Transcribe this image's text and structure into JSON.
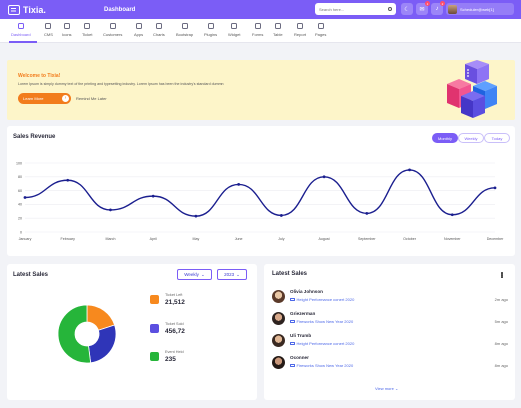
{
  "header": {
    "brand": "Tixia.",
    "page_title": "Dashboard",
    "search_placeholder": "Search here...",
    "notif_count_1": "1",
    "notif_count_2": "2",
    "user_email": "Scheduler@web[1]"
  },
  "nav": {
    "items": [
      {
        "label": "Dashboard"
      },
      {
        "label": "CMS"
      },
      {
        "label": "Icons"
      },
      {
        "label": "Ticket"
      },
      {
        "label": "Customers"
      },
      {
        "label": "Apps"
      },
      {
        "label": "Charts"
      },
      {
        "label": "Bootstrap"
      },
      {
        "label": "Plugins"
      },
      {
        "label": "Widget"
      },
      {
        "label": "Forms"
      },
      {
        "label": "Table"
      },
      {
        "label": "Report"
      },
      {
        "label": "Pages"
      }
    ],
    "active": "Dashboard"
  },
  "welcome": {
    "title": "Welcome to Tixia!",
    "text": "Lorem Ipsum is simply dummy text of the printing and typesetting industry. Lorem Ipsum has been the industry's standard dummn",
    "learn_more": "Learn More",
    "remind_later": "Remind Me Later"
  },
  "sales_revenue": {
    "title": "Sales Revenue",
    "tabs": [
      "Monthly",
      "Weekly",
      "Today"
    ],
    "active_tab": "Monthly"
  },
  "chart_data": {
    "type": "line",
    "title": "Sales Revenue",
    "categories": [
      "January",
      "February",
      "March",
      "April",
      "May",
      "June",
      "July",
      "August",
      "September",
      "October",
      "November",
      "December"
    ],
    "y_ticks": [
      "0",
      "20",
      "40",
      "60",
      "80",
      "100"
    ],
    "ylim": [
      0,
      100
    ],
    "series": [
      {
        "values": [
          50,
          75,
          32,
          52,
          23,
          69,
          24,
          80,
          27,
          90,
          25,
          64
        ]
      }
    ],
    "grid": true,
    "line_color": "#1b1f8f"
  },
  "latest_sales": {
    "title": "Latest Sales",
    "filter_period": "Weekly",
    "filter_year": "2023",
    "legend": [
      {
        "label": "Ticket Left",
        "value": "21,512",
        "color": "#f7891e"
      },
      {
        "label": "Ticket Sold",
        "value": "456,72",
        "color": "#5b4fe0"
      },
      {
        "label": "Event Held",
        "value": "235",
        "color": "#26b53a"
      }
    ],
    "donut": {
      "type": "pie",
      "slices": [
        {
          "label": "Ticket Left",
          "value": 20,
          "color": "#f7891e"
        },
        {
          "label": "Ticket Sold",
          "value": 28,
          "color": "#2f35b8"
        },
        {
          "label": "Event Held",
          "value": 52,
          "color": "#26b53a"
        }
      ]
    }
  },
  "latest_sales_list": {
    "title": "Latest Sales",
    "rows": [
      {
        "name": "Olivia Johnson",
        "event": "Height Performance conert 2020",
        "time": "2m ago"
      },
      {
        "name": "Griezerman",
        "event": "Fireworks Show New Year 2020",
        "time": "5m ago"
      },
      {
        "name": "Uli Trumb",
        "event": "Height Performance conert 2020",
        "time": "8m ago"
      },
      {
        "name": "Oconner",
        "event": "Fireworks Show New Year 2020",
        "time": "8m ago"
      }
    ],
    "view_more": "View more"
  },
  "colors": {
    "primary": "#7b5df6",
    "orange": "#f27c1c",
    "banner": "#fdf5c9",
    "link": "#4c67e8"
  }
}
